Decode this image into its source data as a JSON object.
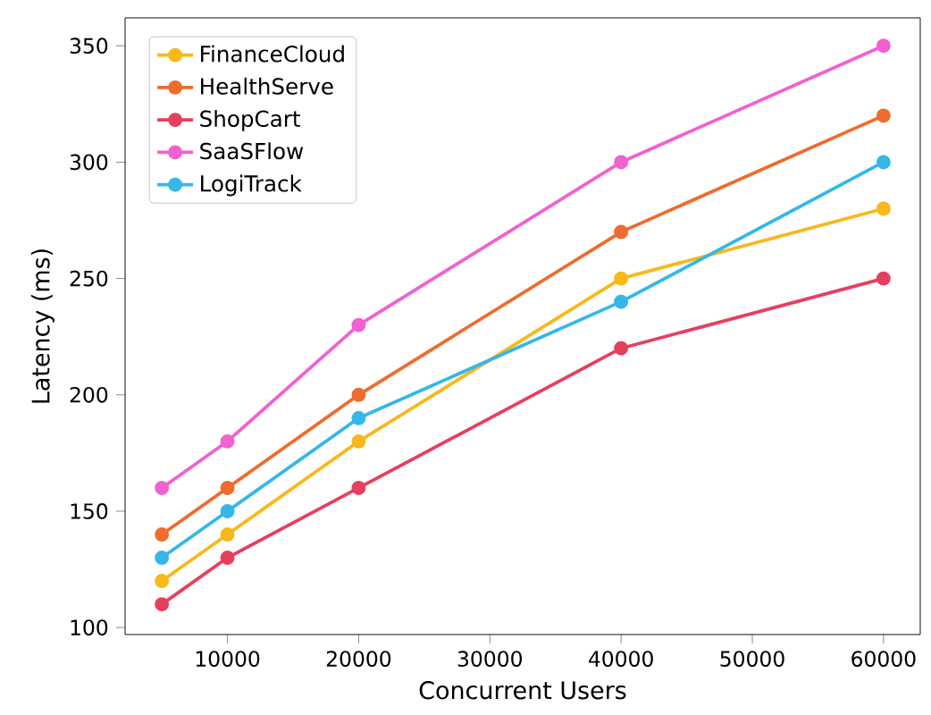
{
  "chart_data": {
    "type": "line",
    "xlabel": "Concurrent Users",
    "ylabel": "Latency (ms)",
    "x": [
      5000,
      10000,
      20000,
      40000,
      60000
    ],
    "series": [
      {
        "name": "FinanceCloud",
        "color": "#f9b81b",
        "values": [
          120,
          140,
          180,
          250,
          280
        ]
      },
      {
        "name": "HealthServe",
        "color": "#ee6c2d",
        "values": [
          140,
          160,
          200,
          270,
          320
        ]
      },
      {
        "name": "ShopCart",
        "color": "#e5405e",
        "values": [
          110,
          130,
          160,
          220,
          250
        ]
      },
      {
        "name": "SaaSFlow",
        "color": "#f062d0",
        "values": [
          160,
          180,
          230,
          300,
          350
        ]
      },
      {
        "name": "LogiTrack",
        "color": "#35b7e8",
        "values": [
          130,
          150,
          190,
          240,
          300
        ]
      }
    ],
    "xlim": [
      2200,
      62800
    ],
    "ylim": [
      97,
      362
    ],
    "xticks": [
      10000,
      20000,
      30000,
      40000,
      50000,
      60000
    ],
    "yticks": [
      100,
      150,
      200,
      250,
      300,
      350
    ],
    "grid": false,
    "legend": "top left",
    "marker": "circle",
    "line_style": "solid"
  }
}
